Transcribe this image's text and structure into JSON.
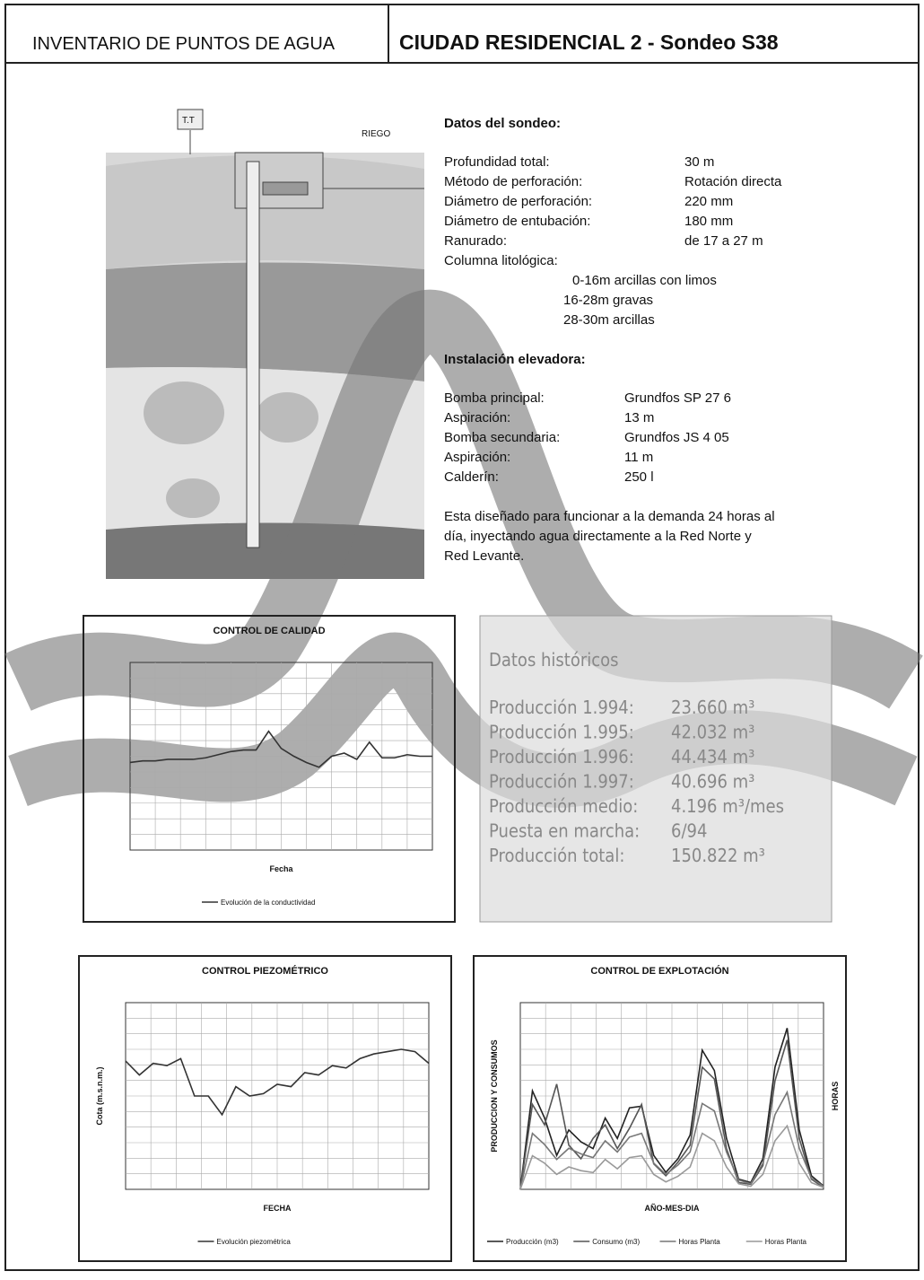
{
  "header": {
    "left": "INVENTARIO DE PUNTOS DE AGUA",
    "title": "CIUDAD RESIDENCIAL 2 - Sondeo S38"
  },
  "diagram": {
    "box": "T.T",
    "label": "RIEGO"
  },
  "sondeo": {
    "heading": "Datos del sondeo:",
    "rows": [
      [
        "Profundidad total:",
        "30 m"
      ],
      [
        "Método de perforación:",
        "Rotación directa"
      ],
      [
        "Diámetro de perforación:",
        "220 mm"
      ],
      [
        "Diámetro de entubación:",
        "180 mm"
      ],
      [
        "Ranurado:",
        "de 17 a 27 m"
      ]
    ],
    "columna": "Columna litológica:",
    "layers": [
      "0-16m arcillas con limos",
      "16-28m gravas",
      "28-30m arcillas"
    ]
  },
  "instalacion": {
    "heading": "Instalación elevadora:",
    "rows": [
      [
        "Bomba principal:",
        "Grundfos SP 27 6"
      ],
      [
        "Aspiración:",
        "13 m"
      ],
      [
        "Bomba secundaria:",
        "Grundfos JS 4 05"
      ],
      [
        "Aspiración:",
        "11 m"
      ],
      [
        "Calderín:",
        "250 l"
      ]
    ],
    "note": [
      "Esta diseñado para funcionar a la demanda 24 horas al",
      "día, inyectando agua directamente a la Red Norte  y",
      "Red Levante."
    ]
  },
  "historicos": {
    "heading": "Datos históricos",
    "rows": [
      [
        "Producción 1.994:",
        "23.660 m³"
      ],
      [
        "Producción 1.995:",
        "42.032 m³"
      ],
      [
        "Producción 1.996:",
        "44.434 m³"
      ],
      [
        "Producción 1.997:",
        "40.696 m³"
      ],
      [
        "Producción medio:",
        "4.196 m³/mes"
      ],
      [
        "Puesta en marcha:",
        "6/94"
      ],
      [
        "Producción total:",
        "150.822 m³"
      ]
    ]
  },
  "charts": [
    {
      "type": "line",
      "title": "CONTROL DE CALIDAD",
      "xlabel": "Fecha",
      "ylim": [
        0,
        12
      ],
      "series": [
        {
          "name": "Evolución de la conductividad",
          "color": "#333",
          "values": [
            5.6,
            5.7,
            5.7,
            5.8,
            5.8,
            5.8,
            5.9,
            6.1,
            6.3,
            6.4,
            6.4,
            7.6,
            6.5,
            6.0,
            5.6,
            5.3,
            6.0,
            6.2,
            5.8,
            6.9,
            5.9,
            5.9,
            6.1,
            6.0,
            6.0
          ]
        }
      ]
    },
    {
      "type": "line",
      "title": "CONTROL PIEZOMÉTRICO",
      "xlabel": "FECHA",
      "ylabel": "Cota (m.s.n.m.)",
      "ylim": [
        0,
        8
      ],
      "series": [
        {
          "name": "Evolución piezométrica",
          "color": "#333",
          "values": [
            5.5,
            4.9,
            5.4,
            5.3,
            5.6,
            4.0,
            4.0,
            3.2,
            4.4,
            4.0,
            4.1,
            4.5,
            4.4,
            5.0,
            4.9,
            5.3,
            5.2,
            5.6,
            5.8,
            5.9,
            6.0,
            5.9,
            5.4
          ]
        }
      ]
    },
    {
      "type": "line",
      "title": "CONTROL DE EXPLOTACIÓN",
      "xlabel": "AÑO-MES-DIA",
      "ylabel": "PRODUCCION Y CONSUMOS",
      "y2label": "HORAS",
      "ylim": [
        0,
        1100
      ],
      "y2lim": [
        0,
        500
      ],
      "series": [
        {
          "name": "Producción (m3)",
          "color": "#222",
          "values": [
            0,
            580,
            420,
            200,
            350,
            280,
            240,
            420,
            300,
            480,
            490,
            200,
            100,
            180,
            320,
            820,
            700,
            300,
            60,
            40,
            180,
            720,
            950,
            350,
            80,
            20
          ]
        },
        {
          "name": "Consumo (m3)",
          "color": "#555",
          "values": [
            0,
            500,
            380,
            620,
            260,
            180,
            300,
            380,
            240,
            360,
            500,
            150,
            80,
            160,
            260,
            720,
            650,
            240,
            40,
            30,
            140,
            640,
            880,
            300,
            60,
            10
          ]
        },
        {
          "name": "Horas Planta",
          "color": "#777",
          "axis": "y2",
          "values": [
            0,
            150,
            120,
            80,
            110,
            95,
            85,
            130,
            100,
            140,
            150,
            70,
            40,
            65,
            100,
            230,
            210,
            100,
            25,
            15,
            70,
            200,
            260,
            110,
            30,
            8
          ]
        },
        {
          "name": "Horas Planta",
          "color": "#999",
          "axis": "y2",
          "values": [
            0,
            90,
            70,
            40,
            60,
            50,
            45,
            80,
            55,
            85,
            90,
            40,
            20,
            35,
            60,
            150,
            130,
            60,
            15,
            8,
            40,
            130,
            170,
            70,
            18,
            5
          ]
        }
      ]
    }
  ]
}
